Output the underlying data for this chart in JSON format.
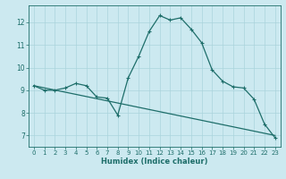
{
  "title": "",
  "xlabel": "Humidex (Indice chaleur)",
  "ylabel": "",
  "background_color": "#cce9f0",
  "line_color": "#1e6e6a",
  "xlim": [
    -0.5,
    23.5
  ],
  "ylim": [
    6.5,
    12.75
  ],
  "yticks": [
    7,
    8,
    9,
    10,
    11,
    12
  ],
  "xticks": [
    0,
    1,
    2,
    3,
    4,
    5,
    6,
    7,
    8,
    9,
    10,
    11,
    12,
    13,
    14,
    15,
    16,
    17,
    18,
    19,
    20,
    21,
    22,
    23
  ],
  "series1_x": [
    0,
    1,
    2,
    3,
    4,
    5,
    6,
    7,
    8,
    9,
    10,
    11,
    12,
    13,
    14,
    15,
    16,
    17,
    18,
    19,
    20,
    21,
    22,
    23
  ],
  "series1_y": [
    9.2,
    9.0,
    9.0,
    9.1,
    9.3,
    9.2,
    8.7,
    8.65,
    7.9,
    9.55,
    10.5,
    11.6,
    12.3,
    12.1,
    12.2,
    11.7,
    11.1,
    9.9,
    9.4,
    9.15,
    9.1,
    8.6,
    7.5,
    6.9
  ],
  "trend_x": [
    0,
    23
  ],
  "trend_y": [
    9.2,
    7.0
  ],
  "grid_color": "#aad4dc",
  "marker_size": 3.5,
  "linewidth": 0.9
}
